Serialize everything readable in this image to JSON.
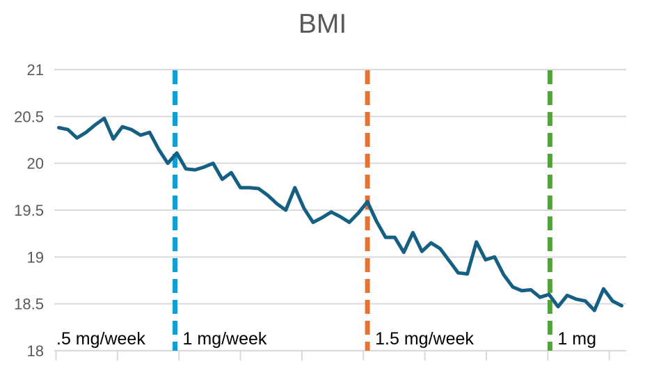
{
  "page": {
    "background": "#FFFFFF"
  },
  "chart_data": {
    "type": "line",
    "title": "BMI",
    "xlabel": "",
    "ylabel": "",
    "ylim": [
      18,
      21
    ],
    "yticks": [
      21,
      20.5,
      20,
      19.5,
      19,
      18.5,
      18
    ],
    "x_tick_labels": [],
    "n_x_ticks": 10,
    "grid": "horizontal-only",
    "legend": "none",
    "series": [
      {
        "name": "BMI",
        "color": "#156082",
        "values": [
          20.38,
          20.36,
          20.27,
          20.33,
          20.41,
          20.48,
          20.26,
          20.39,
          20.36,
          20.3,
          20.33,
          20.15,
          20.0,
          20.11,
          19.94,
          19.93,
          19.96,
          20.0,
          19.83,
          19.9,
          19.74,
          19.74,
          19.73,
          19.66,
          19.57,
          19.5,
          19.74,
          19.52,
          19.37,
          19.42,
          19.48,
          19.43,
          19.37,
          19.47,
          19.59,
          19.38,
          19.21,
          19.21,
          19.05,
          19.26,
          19.06,
          19.15,
          19.09,
          18.96,
          18.83,
          18.82,
          19.16,
          18.97,
          19.0,
          18.81,
          18.68,
          18.64,
          18.65,
          18.57,
          18.6,
          18.47,
          18.59,
          18.55,
          18.53,
          18.43,
          18.66,
          18.53,
          18.48
        ]
      }
    ],
    "dividers": [
      {
        "name": "dose-change-1",
        "color": "#0F9ED5",
        "x_index": 12.8,
        "style": "dashed"
      },
      {
        "name": "dose-change-2",
        "color": "#E97132",
        "x_index": 34.0,
        "style": "dashed"
      },
      {
        "name": "dose-change-3",
        "color": "#4EA72E",
        "x_index": 54.1,
        "style": "dashed"
      }
    ],
    "phase_labels": [
      {
        "text": ".5 mg/week"
      },
      {
        "text": "1 mg/week"
      },
      {
        "text": "1.5 mg/week"
      },
      {
        "text": "1 mg"
      }
    ]
  },
  "colors": {
    "title_text": "#595959",
    "axis_text": "#595959",
    "gridline": "#D9D9D9",
    "annotation_text": "#000000",
    "background": "#FFFFFF"
  }
}
